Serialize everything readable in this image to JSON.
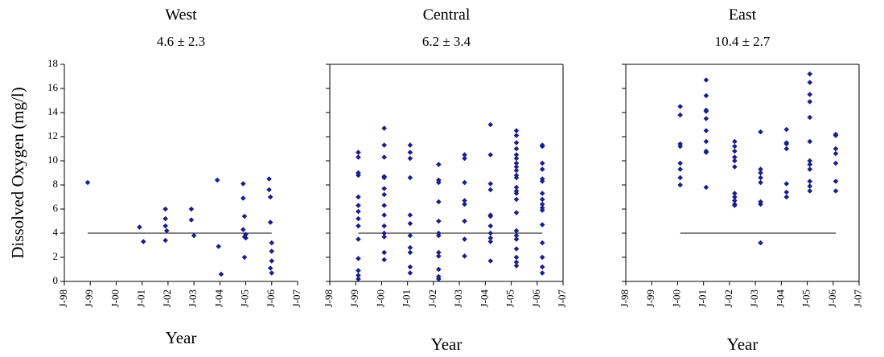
{
  "chart_data": [
    {
      "type": "scatter",
      "title": "West",
      "subtitle": "4.6 ± 2.3",
      "ylabel": "Dissolved Oxygen (mg/l)",
      "xlabel": "Year",
      "color": "#1c1c8a",
      "threshold": 4,
      "xlim": [
        1998,
        2007
      ],
      "xticks": [
        {
          "value": 1998,
          "label": "J-98"
        },
        {
          "value": 1999,
          "label": "J-99"
        },
        {
          "value": 2000,
          "label": "J-00"
        },
        {
          "value": 2001,
          "label": "J-01"
        },
        {
          "value": 2002,
          "label": "J-02"
        },
        {
          "value": 2003,
          "label": "J-03"
        },
        {
          "value": 2004,
          "label": "J-04"
        },
        {
          "value": 2005,
          "label": "J-05"
        },
        {
          "value": 2006,
          "label": "J-06"
        },
        {
          "value": 2007,
          "label": "J-07"
        }
      ],
      "ylim": [
        0,
        18
      ],
      "yticks": [
        0,
        2,
        4,
        6,
        8,
        10,
        12,
        14,
        16,
        18
      ],
      "x": [
        1998.9,
        2000.9,
        2001.05,
        2001.9,
        2001.9,
        2001.9,
        2001.95,
        2001.9,
        2002.9,
        2002.9,
        2003.0,
        2003.9,
        2003.95,
        2004.05,
        2004.9,
        2004.9,
        2004.95,
        2004.9,
        2005.0,
        2005.0,
        2004.95,
        2004.95,
        2005.9,
        2005.9,
        2005.95,
        2005.95,
        2006.0,
        2006.0,
        2006.0,
        2005.95,
        2006.0
      ],
      "values": [
        8.2,
        4.5,
        3.3,
        6.0,
        5.2,
        4.6,
        4.2,
        3.4,
        6.0,
        5.1,
        3.8,
        8.4,
        2.9,
        0.6,
        8.1,
        6.9,
        5.4,
        4.3,
        3.9,
        3.6,
        2.0,
        3.7,
        8.5,
        7.6,
        7.0,
        4.9,
        3.2,
        2.5,
        1.7,
        1.1,
        0.7
      ]
    },
    {
      "type": "scatter",
      "title": "Central",
      "subtitle": "6.2 ± 3.4",
      "xlabel": "Year",
      "color": "#1c1c8a",
      "threshold": 4,
      "xlim": [
        1998,
        2007
      ],
      "xticks": [
        {
          "value": 1998,
          "label": "J-98"
        },
        {
          "value": 1999,
          "label": "J-99"
        },
        {
          "value": 2000,
          "label": "J-00"
        },
        {
          "value": 2001,
          "label": "J-01"
        },
        {
          "value": 2002,
          "label": "J-02"
        },
        {
          "value": 2003,
          "label": "J-03"
        },
        {
          "value": 2004,
          "label": "J-04"
        },
        {
          "value": 2005,
          "label": "J-05"
        },
        {
          "value": 2006,
          "label": "J-06"
        },
        {
          "value": 2007,
          "label": "J-07"
        }
      ],
      "ylim": [
        0,
        18
      ],
      "x": [
        1999.1,
        1999.1,
        1999.1,
        1999.1,
        1999.1,
        1999.1,
        1999.1,
        1999.1,
        1999.1,
        1999.1,
        1999.1,
        1999.1,
        1999.1,
        1999.1,
        2000.1,
        2000.1,
        2000.1,
        2000.1,
        2000.1,
        2000.1,
        2000.1,
        2000.1,
        2000.1,
        2000.1,
        2000.1,
        2000.1,
        2000.1,
        2000.1,
        2001.1,
        2001.1,
        2001.1,
        2001.1,
        2001.1,
        2001.1,
        2001.1,
        2001.1,
        2001.1,
        2001.1,
        2001.1,
        2002.2,
        2002.2,
        2002.2,
        2002.2,
        2002.2,
        2002.2,
        2002.2,
        2002.2,
        2002.2,
        2002.2,
        2002.2,
        2002.2,
        2003.2,
        2003.2,
        2003.2,
        2003.2,
        2003.2,
        2003.2,
        2003.2,
        2003.2,
        2004.2,
        2004.2,
        2004.2,
        2004.2,
        2004.2,
        2004.2,
        2004.2,
        2004.2,
        2004.2,
        2004.2,
        2004.2,
        2005.2,
        2005.2,
        2005.2,
        2005.2,
        2005.2,
        2005.2,
        2005.2,
        2005.2,
        2005.2,
        2005.2,
        2005.2,
        2005.2,
        2005.2,
        2005.2,
        2005.2,
        2005.2,
        2005.2,
        2005.2,
        2005.2,
        2005.2,
        2005.2,
        2005.2,
        2005.2,
        2006.2,
        2006.2,
        2006.2,
        2006.2,
        2006.2,
        2006.2,
        2006.2,
        2006.2,
        2006.2,
        2006.2,
        2006.2,
        2006.2,
        2006.2,
        2006.2,
        2006.2,
        2006.2
      ],
      "values": [
        10.7,
        10.3,
        9.0,
        8.8,
        7.0,
        6.3,
        5.8,
        5.2,
        4.6,
        3.5,
        1.9,
        0.9,
        0.5,
        0.2,
        12.7,
        11.3,
        10.3,
        8.7,
        8.6,
        7.7,
        7.2,
        6.3,
        5.5,
        4.6,
        4.0,
        3.7,
        2.4,
        1.8,
        11.3,
        10.7,
        10.2,
        8.6,
        5.5,
        4.8,
        3.8,
        2.8,
        2.4,
        1.2,
        0.7,
        9.7,
        8.4,
        8.2,
        6.6,
        5.0,
        4.0,
        3.8,
        2.4,
        2.1,
        1.0,
        0.4,
        0.2,
        10.5,
        10.2,
        8.2,
        6.7,
        6.4,
        5.0,
        3.5,
        2.1,
        13.0,
        10.5,
        8.1,
        7.6,
        5.5,
        5.4,
        4.6,
        4.0,
        3.6,
        3.3,
        1.7,
        12.5,
        12.1,
        11.5,
        11.0,
        10.5,
        10.2,
        9.8,
        9.5,
        9.2,
        8.8,
        8.6,
        7.8,
        7.5,
        7.3,
        6.8,
        5.7,
        4.2,
        3.8,
        3.5,
        2.7,
        2.0,
        1.6,
        1.3,
        11.3,
        11.2,
        9.8,
        9.3,
        8.5,
        8.3,
        7.3,
        6.8,
        6.4,
        6.1,
        5.9,
        4.7,
        3.2,
        2.0,
        1.2,
        0.7
      ]
    },
    {
      "type": "scatter",
      "title": "East",
      "subtitle": "10.4 ± 2.7",
      "xlabel": "Year",
      "color": "#1c1c8a",
      "threshold": 4,
      "xlim": [
        1998,
        2007
      ],
      "xticks": [
        {
          "value": 1998,
          "label": "J-98"
        },
        {
          "value": 1999,
          "label": "J-99"
        },
        {
          "value": 2000,
          "label": "J-00"
        },
        {
          "value": 2001,
          "label": "J-01"
        },
        {
          "value": 2002,
          "label": "J-02"
        },
        {
          "value": 2003,
          "label": "J-03"
        },
        {
          "value": 2004,
          "label": "J-04"
        },
        {
          "value": 2005,
          "label": "J-05"
        },
        {
          "value": 2006,
          "label": "J-06"
        },
        {
          "value": 2007,
          "label": "J-07"
        }
      ],
      "ylim": [
        0,
        18
      ],
      "x": [
        2000.1,
        2000.1,
        2000.1,
        2000.1,
        2000.1,
        2000.1,
        2000.1,
        2000.1,
        2001.1,
        2001.1,
        2001.1,
        2001.1,
        2001.1,
        2001.1,
        2001.1,
        2001.1,
        2001.1,
        2001.1,
        2002.2,
        2002.2,
        2002.2,
        2002.2,
        2002.2,
        2002.2,
        2002.2,
        2002.2,
        2002.2,
        2002.2,
        2002.2,
        2003.2,
        2003.2,
        2003.2,
        2003.2,
        2003.2,
        2003.2,
        2003.2,
        2003.2,
        2004.2,
        2004.2,
        2004.2,
        2004.2,
        2004.2,
        2004.2,
        2004.2,
        2005.1,
        2005.1,
        2005.1,
        2005.1,
        2005.1,
        2005.1,
        2005.1,
        2005.1,
        2005.1,
        2005.1,
        2005.1,
        2005.1,
        2006.1,
        2006.1,
        2006.1,
        2006.1,
        2006.1,
        2006.1,
        2006.1
      ],
      "values": [
        14.5,
        13.8,
        11.4,
        11.2,
        9.8,
        9.3,
        8.6,
        8.0,
        16.7,
        15.4,
        14.2,
        14.1,
        13.5,
        12.5,
        11.6,
        10.8,
        10.7,
        7.8,
        11.6,
        11.2,
        10.8,
        10.3,
        10.0,
        9.5,
        7.3,
        7.0,
        6.7,
        6.4,
        6.3,
        12.4,
        9.3,
        9.0,
        8.6,
        8.2,
        6.6,
        6.4,
        3.2,
        12.6,
        11.5,
        11.4,
        11.0,
        8.1,
        7.4,
        7.0,
        17.2,
        16.5,
        15.5,
        14.9,
        13.6,
        11.6,
        10.0,
        9.7,
        9.3,
        8.3,
        7.9,
        7.5,
        12.2,
        12.1,
        11.0,
        10.6,
        9.8,
        8.3,
        7.5
      ]
    }
  ]
}
